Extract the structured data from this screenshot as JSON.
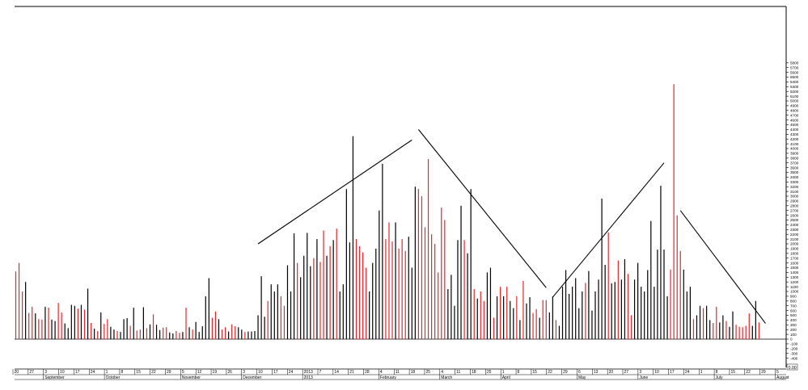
{
  "chart_data": {
    "type": "bar",
    "title": "",
    "xlabel": "",
    "ylabel": "",
    "ylim": [
      -400,
      5800
    ],
    "y_ticks": [
      -400,
      -300,
      -200,
      -100,
      0,
      100,
      200,
      300,
      400,
      500,
      600,
      700,
      800,
      900,
      1000,
      1100,
      1200,
      1300,
      1400,
      1500,
      1600,
      1700,
      1800,
      1900,
      2000,
      2100,
      2200,
      2300,
      2400,
      2500,
      2600,
      2700,
      2800,
      2900,
      3000,
      3100,
      3200,
      3300,
      3400,
      3500,
      3600,
      3700,
      3800,
      3900,
      4000,
      4100,
      4200,
      4300,
      4400,
      4500,
      4600,
      4700,
      4800,
      4900,
      5000,
      5100,
      5200,
      5300,
      5400,
      5500,
      5600,
      5700,
      5800
    ],
    "y_axis_position": "right",
    "grid": false,
    "series_colors": {
      "down": "#e8262b",
      "up": "#000000"
    },
    "date_ticks": [
      "20",
      "27",
      "3",
      "10",
      "17",
      "24",
      "1",
      "8",
      "15",
      "22",
      "29",
      "5",
      "12",
      "19",
      "26",
      "3",
      "10",
      "17",
      "24",
      "2013",
      "7",
      "14",
      "21",
      "28",
      "4",
      "11",
      "18",
      "25",
      "4",
      "11",
      "18",
      "25",
      "1",
      "8",
      "15",
      "22",
      "29",
      "6",
      "13",
      "20",
      "27",
      "3",
      "10",
      "17",
      "24",
      "1",
      "8",
      "15",
      "22",
      "29",
      "5"
    ],
    "month_labels": [
      "September",
      "October",
      "November",
      "December",
      "2013",
      "February",
      "March",
      "April",
      "May",
      "June",
      "July",
      "August"
    ],
    "bars": [
      {
        "x": 0,
        "v": 1420,
        "c": "down"
      },
      {
        "x": 1,
        "v": 1600,
        "c": "down"
      },
      {
        "x": 2,
        "v": 1000,
        "c": "down"
      },
      {
        "x": 3,
        "v": 1200,
        "c": "up"
      },
      {
        "x": 4,
        "v": 550,
        "c": "down"
      },
      {
        "x": 5,
        "v": 680,
        "c": "down"
      },
      {
        "x": 6,
        "v": 540,
        "c": "up"
      },
      {
        "x": 7,
        "v": 420,
        "c": "down"
      },
      {
        "x": 8,
        "v": 410,
        "c": "down"
      },
      {
        "x": 9,
        "v": 680,
        "c": "up"
      },
      {
        "x": 10,
        "v": 660,
        "c": "down"
      },
      {
        "x": 11,
        "v": 410,
        "c": "up"
      },
      {
        "x": 12,
        "v": 380,
        "c": "up"
      },
      {
        "x": 13,
        "v": 760,
        "c": "down"
      },
      {
        "x": 14,
        "v": 560,
        "c": "down"
      },
      {
        "x": 15,
        "v": 330,
        "c": "up"
      },
      {
        "x": 16,
        "v": 230,
        "c": "up"
      },
      {
        "x": 17,
        "v": 720,
        "c": "up"
      },
      {
        "x": 18,
        "v": 700,
        "c": "up"
      },
      {
        "x": 19,
        "v": 640,
        "c": "down"
      },
      {
        "x": 20,
        "v": 720,
        "c": "up"
      },
      {
        "x": 21,
        "v": 620,
        "c": "down"
      },
      {
        "x": 22,
        "v": 1060,
        "c": "up"
      },
      {
        "x": 23,
        "v": 340,
        "c": "down"
      },
      {
        "x": 24,
        "v": 220,
        "c": "up"
      },
      {
        "x": 25,
        "v": 170,
        "c": "down"
      },
      {
        "x": 26,
        "v": 560,
        "c": "up"
      },
      {
        "x": 27,
        "v": 320,
        "c": "down"
      },
      {
        "x": 28,
        "v": 420,
        "c": "down"
      },
      {
        "x": 29,
        "v": 260,
        "c": "up"
      },
      {
        "x": 30,
        "v": 200,
        "c": "up"
      },
      {
        "x": 31,
        "v": 170,
        "c": "down"
      },
      {
        "x": 32,
        "v": 150,
        "c": "up"
      },
      {
        "x": 33,
        "v": 420,
        "c": "up"
      },
      {
        "x": 34,
        "v": 440,
        "c": "up"
      },
      {
        "x": 35,
        "v": 280,
        "c": "down"
      },
      {
        "x": 36,
        "v": 660,
        "c": "up"
      },
      {
        "x": 37,
        "v": 180,
        "c": "down"
      },
      {
        "x": 38,
        "v": 200,
        "c": "down"
      },
      {
        "x": 39,
        "v": 670,
        "c": "up"
      },
      {
        "x": 40,
        "v": 230,
        "c": "down"
      },
      {
        "x": 41,
        "v": 310,
        "c": "up"
      },
      {
        "x": 42,
        "v": 520,
        "c": "down"
      },
      {
        "x": 43,
        "v": 300,
        "c": "up"
      },
      {
        "x": 44,
        "v": 190,
        "c": "up"
      },
      {
        "x": 45,
        "v": 240,
        "c": "down"
      },
      {
        "x": 46,
        "v": 250,
        "c": "down"
      },
      {
        "x": 47,
        "v": 140,
        "c": "up"
      },
      {
        "x": 48,
        "v": 120,
        "c": "up"
      },
      {
        "x": 49,
        "v": 170,
        "c": "down"
      },
      {
        "x": 50,
        "v": 130,
        "c": "down"
      },
      {
        "x": 51,
        "v": 150,
        "c": "up"
      },
      {
        "x": 52,
        "v": 660,
        "c": "down"
      },
      {
        "x": 53,
        "v": 250,
        "c": "up"
      },
      {
        "x": 54,
        "v": 200,
        "c": "down"
      },
      {
        "x": 55,
        "v": 360,
        "c": "up"
      },
      {
        "x": 56,
        "v": 150,
        "c": "up"
      },
      {
        "x": 57,
        "v": 270,
        "c": "up"
      },
      {
        "x": 58,
        "v": 900,
        "c": "up"
      },
      {
        "x": 59,
        "v": 1280,
        "c": "up"
      },
      {
        "x": 60,
        "v": 450,
        "c": "down"
      },
      {
        "x": 61,
        "v": 580,
        "c": "down"
      },
      {
        "x": 62,
        "v": 420,
        "c": "up"
      },
      {
        "x": 63,
        "v": 200,
        "c": "down"
      },
      {
        "x": 64,
        "v": 250,
        "c": "down"
      },
      {
        "x": 65,
        "v": 160,
        "c": "up"
      },
      {
        "x": 66,
        "v": 310,
        "c": "down"
      },
      {
        "x": 67,
        "v": 270,
        "c": "down"
      },
      {
        "x": 68,
        "v": 250,
        "c": "up"
      },
      {
        "x": 69,
        "v": 200,
        "c": "up"
      },
      {
        "x": 70,
        "v": 150,
        "c": "down"
      },
      {
        "x": 71,
        "v": 160,
        "c": "up"
      },
      {
        "x": 72,
        "v": 160,
        "c": "up"
      },
      {
        "x": 73,
        "v": 170,
        "c": "up"
      },
      {
        "x": 74,
        "v": 500,
        "c": "up"
      },
      {
        "x": 75,
        "v": 1320,
        "c": "up"
      },
      {
        "x": 76,
        "v": 470,
        "c": "up"
      },
      {
        "x": 77,
        "v": 800,
        "c": "down"
      },
      {
        "x": 78,
        "v": 1150,
        "c": "up"
      },
      {
        "x": 79,
        "v": 1000,
        "c": "up"
      },
      {
        "x": 80,
        "v": 1150,
        "c": "up"
      },
      {
        "x": 81,
        "v": 900,
        "c": "down"
      },
      {
        "x": 82,
        "v": 700,
        "c": "down"
      },
      {
        "x": 83,
        "v": 1550,
        "c": "up"
      },
      {
        "x": 84,
        "v": 1000,
        "c": "up"
      },
      {
        "x": 85,
        "v": 2220,
        "c": "up"
      },
      {
        "x": 86,
        "v": 1600,
        "c": "down"
      },
      {
        "x": 87,
        "v": 1300,
        "c": "up"
      },
      {
        "x": 88,
        "v": 1750,
        "c": "up"
      },
      {
        "x": 89,
        "v": 2230,
        "c": "up"
      },
      {
        "x": 90,
        "v": 1530,
        "c": "up"
      },
      {
        "x": 91,
        "v": 1700,
        "c": "down"
      },
      {
        "x": 92,
        "v": 2100,
        "c": "up"
      },
      {
        "x": 93,
        "v": 1620,
        "c": "down"
      },
      {
        "x": 94,
        "v": 2280,
        "c": "down"
      },
      {
        "x": 95,
        "v": 1750,
        "c": "up"
      },
      {
        "x": 96,
        "v": 1950,
        "c": "down"
      },
      {
        "x": 97,
        "v": 2080,
        "c": "up"
      },
      {
        "x": 98,
        "v": 2320,
        "c": "down"
      },
      {
        "x": 99,
        "v": 1000,
        "c": "up"
      },
      {
        "x": 100,
        "v": 1150,
        "c": "up"
      },
      {
        "x": 101,
        "v": 3150,
        "c": "up"
      },
      {
        "x": 102,
        "v": 2030,
        "c": "up"
      },
      {
        "x": 103,
        "v": 4260,
        "c": "up"
      },
      {
        "x": 104,
        "v": 2100,
        "c": "down"
      },
      {
        "x": 105,
        "v": 1950,
        "c": "down"
      },
      {
        "x": 106,
        "v": 1820,
        "c": "down"
      },
      {
        "x": 107,
        "v": 1500,
        "c": "down"
      },
      {
        "x": 108,
        "v": 1000,
        "c": "up"
      },
      {
        "x": 109,
        "v": 1600,
        "c": "up"
      },
      {
        "x": 110,
        "v": 1900,
        "c": "up"
      },
      {
        "x": 111,
        "v": 2700,
        "c": "up"
      },
      {
        "x": 112,
        "v": 3680,
        "c": "up"
      },
      {
        "x": 113,
        "v": 2100,
        "c": "down"
      },
      {
        "x": 114,
        "v": 2450,
        "c": "down"
      },
      {
        "x": 115,
        "v": 2050,
        "c": "down"
      },
      {
        "x": 116,
        "v": 2450,
        "c": "up"
      },
      {
        "x": 117,
        "v": 1900,
        "c": "down"
      },
      {
        "x": 118,
        "v": 2100,
        "c": "down"
      },
      {
        "x": 119,
        "v": 1850,
        "c": "down"
      },
      {
        "x": 120,
        "v": 2150,
        "c": "up"
      },
      {
        "x": 121,
        "v": 1500,
        "c": "up"
      },
      {
        "x": 122,
        "v": 3200,
        "c": "up"
      },
      {
        "x": 123,
        "v": 3150,
        "c": "down"
      },
      {
        "x": 124,
        "v": 3000,
        "c": "down"
      },
      {
        "x": 125,
        "v": 2350,
        "c": "down"
      },
      {
        "x": 126,
        "v": 3780,
        "c": "down"
      },
      {
        "x": 127,
        "v": 2200,
        "c": "down"
      },
      {
        "x": 128,
        "v": 2000,
        "c": "down"
      },
      {
        "x": 129,
        "v": 1400,
        "c": "down"
      },
      {
        "x": 130,
        "v": 2760,
        "c": "down"
      },
      {
        "x": 131,
        "v": 2500,
        "c": "down"
      },
      {
        "x": 132,
        "v": 1050,
        "c": "up"
      },
      {
        "x": 133,
        "v": 1350,
        "c": "up"
      },
      {
        "x": 134,
        "v": 700,
        "c": "up"
      },
      {
        "x": 135,
        "v": 2080,
        "c": "up"
      },
      {
        "x": 136,
        "v": 2800,
        "c": "up"
      },
      {
        "x": 137,
        "v": 2080,
        "c": "down"
      },
      {
        "x": 138,
        "v": 1800,
        "c": "up"
      },
      {
        "x": 139,
        "v": 3150,
        "c": "up"
      },
      {
        "x": 140,
        "v": 1050,
        "c": "down"
      },
      {
        "x": 141,
        "v": 850,
        "c": "up"
      },
      {
        "x": 142,
        "v": 1000,
        "c": "down"
      },
      {
        "x": 143,
        "v": 800,
        "c": "down"
      },
      {
        "x": 144,
        "v": 1400,
        "c": "up"
      },
      {
        "x": 145,
        "v": 1500,
        "c": "up"
      },
      {
        "x": 146,
        "v": 450,
        "c": "down"
      },
      {
        "x": 147,
        "v": 900,
        "c": "up"
      },
      {
        "x": 148,
        "v": 1100,
        "c": "down"
      },
      {
        "x": 149,
        "v": 900,
        "c": "up"
      },
      {
        "x": 150,
        "v": 1100,
        "c": "down"
      },
      {
        "x": 151,
        "v": 800,
        "c": "up"
      },
      {
        "x": 152,
        "v": 650,
        "c": "up"
      },
      {
        "x": 153,
        "v": 900,
        "c": "down"
      },
      {
        "x": 154,
        "v": 400,
        "c": "up"
      },
      {
        "x": 155,
        "v": 1220,
        "c": "down"
      },
      {
        "x": 156,
        "v": 750,
        "c": "up"
      },
      {
        "x": 157,
        "v": 880,
        "c": "up"
      },
      {
        "x": 158,
        "v": 550,
        "c": "down"
      },
      {
        "x": 159,
        "v": 630,
        "c": "down"
      },
      {
        "x": 160,
        "v": 450,
        "c": "up"
      },
      {
        "x": 161,
        "v": 820,
        "c": "down"
      },
      {
        "x": 162,
        "v": 820,
        "c": "down"
      },
      {
        "x": 163,
        "v": 560,
        "c": "up"
      },
      {
        "x": 164,
        "v": 900,
        "c": "up"
      },
      {
        "x": 165,
        "v": 400,
        "c": "down"
      },
      {
        "x": 166,
        "v": 280,
        "c": "up"
      },
      {
        "x": 167,
        "v": 1100,
        "c": "up"
      },
      {
        "x": 168,
        "v": 1450,
        "c": "up"
      },
      {
        "x": 169,
        "v": 950,
        "c": "up"
      },
      {
        "x": 170,
        "v": 1100,
        "c": "up"
      },
      {
        "x": 171,
        "v": 1280,
        "c": "up"
      },
      {
        "x": 172,
        "v": 650,
        "c": "up"
      },
      {
        "x": 173,
        "v": 1000,
        "c": "up"
      },
      {
        "x": 174,
        "v": 1180,
        "c": "down"
      },
      {
        "x": 175,
        "v": 1430,
        "c": "up"
      },
      {
        "x": 176,
        "v": 600,
        "c": "up"
      },
      {
        "x": 177,
        "v": 1000,
        "c": "up"
      },
      {
        "x": 178,
        "v": 1250,
        "c": "up"
      },
      {
        "x": 179,
        "v": 2950,
        "c": "up"
      },
      {
        "x": 180,
        "v": 1560,
        "c": "up"
      },
      {
        "x": 181,
        "v": 2240,
        "c": "down"
      },
      {
        "x": 182,
        "v": 1170,
        "c": "up"
      },
      {
        "x": 183,
        "v": 1200,
        "c": "up"
      },
      {
        "x": 184,
        "v": 1650,
        "c": "down"
      },
      {
        "x": 185,
        "v": 1250,
        "c": "up"
      },
      {
        "x": 186,
        "v": 1680,
        "c": "up"
      },
      {
        "x": 187,
        "v": 1370,
        "c": "down"
      },
      {
        "x": 188,
        "v": 500,
        "c": "down"
      },
      {
        "x": 189,
        "v": 1250,
        "c": "up"
      },
      {
        "x": 190,
        "v": 1600,
        "c": "up"
      },
      {
        "x": 191,
        "v": 1100,
        "c": "up"
      },
      {
        "x": 192,
        "v": 1000,
        "c": "up"
      },
      {
        "x": 193,
        "v": 1450,
        "c": "up"
      },
      {
        "x": 194,
        "v": 2480,
        "c": "up"
      },
      {
        "x": 195,
        "v": 1100,
        "c": "up"
      },
      {
        "x": 196,
        "v": 1880,
        "c": "up"
      },
      {
        "x": 197,
        "v": 3220,
        "c": "up"
      },
      {
        "x": 198,
        "v": 1880,
        "c": "up"
      },
      {
        "x": 199,
        "v": 900,
        "c": "up"
      },
      {
        "x": 200,
        "v": 1460,
        "c": "down"
      },
      {
        "x": 201,
        "v": 5350,
        "c": "down"
      },
      {
        "x": 202,
        "v": 2600,
        "c": "down"
      },
      {
        "x": 203,
        "v": 1850,
        "c": "down"
      },
      {
        "x": 204,
        "v": 1460,
        "c": "up"
      },
      {
        "x": 205,
        "v": 1000,
        "c": "up"
      },
      {
        "x": 206,
        "v": 1100,
        "c": "up"
      },
      {
        "x": 207,
        "v": 420,
        "c": "down"
      },
      {
        "x": 208,
        "v": 500,
        "c": "up"
      },
      {
        "x": 209,
        "v": 700,
        "c": "up"
      },
      {
        "x": 210,
        "v": 650,
        "c": "down"
      },
      {
        "x": 211,
        "v": 700,
        "c": "up"
      },
      {
        "x": 212,
        "v": 400,
        "c": "up"
      },
      {
        "x": 213,
        "v": 340,
        "c": "down"
      },
      {
        "x": 214,
        "v": 680,
        "c": "down"
      },
      {
        "x": 215,
        "v": 350,
        "c": "up"
      },
      {
        "x": 216,
        "v": 500,
        "c": "up"
      },
      {
        "x": 217,
        "v": 380,
        "c": "down"
      },
      {
        "x": 218,
        "v": 260,
        "c": "up"
      },
      {
        "x": 219,
        "v": 580,
        "c": "up"
      },
      {
        "x": 220,
        "v": 300,
        "c": "down"
      },
      {
        "x": 221,
        "v": 260,
        "c": "down"
      },
      {
        "x": 222,
        "v": 250,
        "c": "down"
      },
      {
        "x": 223,
        "v": 280,
        "c": "down"
      },
      {
        "x": 224,
        "v": 540,
        "c": "down"
      },
      {
        "x": 225,
        "v": 280,
        "c": "up"
      },
      {
        "x": 226,
        "v": 800,
        "c": "up"
      },
      {
        "x": 227,
        "v": 350,
        "c": "down"
      }
    ],
    "trend_lines": [
      {
        "x1": 74,
        "y1": 2000,
        "x2": 121,
        "y2": 4180
      },
      {
        "x1": 123,
        "y1": 4400,
        "x2": 162,
        "y2": 1080
      },
      {
        "x1": 164,
        "y1": 880,
        "x2": 198,
        "y2": 3700
      },
      {
        "x1": 203,
        "y1": 2700,
        "x2": 229,
        "y2": 330
      }
    ],
    "last_value_label": "0.00"
  }
}
